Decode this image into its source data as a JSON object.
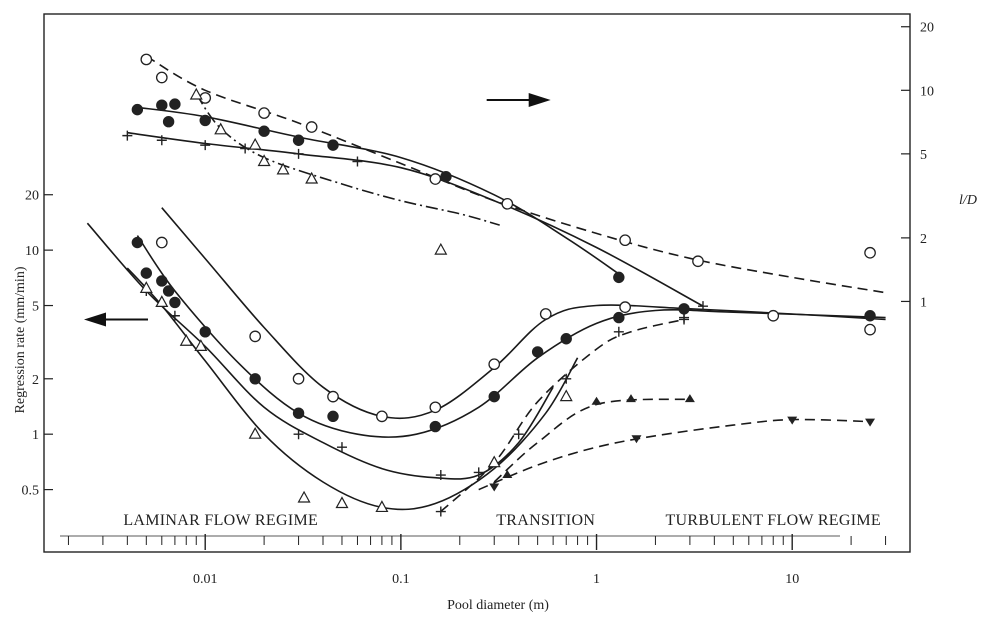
{
  "chart_data": {
    "type": "line",
    "xlabel": "Pool diameter (m)",
    "ylabel_left": "Regression rate (mm/min)",
    "ylabel_right": "l/D",
    "xscale": "log",
    "yscale": "log",
    "xlim": [
      0.0015,
      40
    ],
    "xticks": [
      {
        "value": 0.01,
        "label": "0.01"
      },
      {
        "value": 0.1,
        "label": "0.1"
      },
      {
        "value": 1,
        "label": "1"
      },
      {
        "value": 10,
        "label": "10"
      }
    ],
    "left_axis": {
      "ylim": [
        0.25,
        35
      ],
      "ticks": [
        {
          "value": 0.5,
          "label": "0.5"
        },
        {
          "value": 1,
          "label": "1"
        },
        {
          "value": 2,
          "label": "2"
        },
        {
          "value": 5,
          "label": "5"
        },
        {
          "value": 10,
          "label": "10"
        },
        {
          "value": 20,
          "label": "20"
        }
      ]
    },
    "right_axis": {
      "ylim": [
        0.5,
        22
      ],
      "ticks": [
        {
          "value": 1,
          "label": "1"
        },
        {
          "value": 2,
          "label": "2"
        },
        {
          "value": 5,
          "label": "5"
        },
        {
          "value": 10,
          "label": "10"
        },
        {
          "value": 20,
          "label": "20"
        }
      ]
    },
    "regime_labels": [
      {
        "text": "LAMINAR FLOW REGIME",
        "x": 0.012
      },
      {
        "text": "TRANSITION",
        "x": 0.55
      },
      {
        "text": "TURBULENT FLOW REGIME",
        "x": 8
      }
    ],
    "arrows": [
      {
        "direction": "right",
        "axis": "right",
        "x": 0.4,
        "y": 9
      },
      {
        "direction": "left",
        "axis": "left",
        "x": 0.0035,
        "y": 4.2
      }
    ],
    "series": [
      {
        "axis": "left",
        "marker": "open-circle",
        "style": "solid",
        "points": [
          [
            0.006,
            11
          ],
          [
            0.018,
            3.4
          ],
          [
            0.03,
            2.0
          ],
          [
            0.045,
            1.6
          ],
          [
            0.08,
            1.25
          ],
          [
            0.15,
            1.4
          ],
          [
            0.3,
            2.4
          ],
          [
            0.55,
            4.5
          ],
          [
            1.4,
            4.9
          ],
          [
            8,
            4.4
          ],
          [
            25,
            3.7
          ]
        ],
        "curve": [
          [
            0.006,
            17
          ],
          [
            0.01,
            9
          ],
          [
            0.02,
            3.8
          ],
          [
            0.04,
            1.8
          ],
          [
            0.08,
            1.25
          ],
          [
            0.15,
            1.35
          ],
          [
            0.3,
            2.3
          ],
          [
            0.55,
            4.2
          ],
          [
            1,
            5
          ],
          [
            3,
            4.8
          ],
          [
            10,
            4.5
          ],
          [
            30,
            4.2
          ]
        ]
      },
      {
        "axis": "left",
        "marker": "filled-circle",
        "style": "solid",
        "points": [
          [
            0.0045,
            11
          ],
          [
            0.005,
            7.5
          ],
          [
            0.006,
            6.8
          ],
          [
            0.0065,
            6
          ],
          [
            0.007,
            5.2
          ],
          [
            0.01,
            3.6
          ],
          [
            0.018,
            2.0
          ],
          [
            0.03,
            1.3
          ],
          [
            0.045,
            1.25
          ],
          [
            0.15,
            1.1
          ],
          [
            0.3,
            1.6
          ],
          [
            0.5,
            2.8
          ],
          [
            0.7,
            3.3
          ],
          [
            1.3,
            4.3
          ],
          [
            2.8,
            4.8
          ],
          [
            25,
            4.4
          ]
        ],
        "curve": [
          [
            0.0045,
            12
          ],
          [
            0.007,
            6
          ],
          [
            0.015,
            2.4
          ],
          [
            0.03,
            1.3
          ],
          [
            0.06,
            1.0
          ],
          [
            0.12,
            1.0
          ],
          [
            0.25,
            1.4
          ],
          [
            0.5,
            2.6
          ],
          [
            1,
            4
          ],
          [
            2,
            4.7
          ],
          [
            5,
            4.6
          ],
          [
            30,
            4.3
          ]
        ]
      },
      {
        "axis": "left",
        "marker": "plus",
        "style": "solid",
        "points": [
          [
            0.005,
            6
          ],
          [
            0.007,
            4.4
          ],
          [
            0.03,
            1.0
          ],
          [
            0.05,
            0.85
          ],
          [
            0.16,
            0.6
          ],
          [
            0.25,
            0.62
          ],
          [
            2.8,
            4.3
          ]
        ],
        "curve": [
          [
            0.0025,
            14
          ],
          [
            0.005,
            6
          ],
          [
            0.01,
            3
          ],
          [
            0.02,
            1.4
          ],
          [
            0.04,
            0.9
          ],
          [
            0.08,
            0.65
          ],
          [
            0.15,
            0.58
          ],
          [
            0.25,
            0.6
          ],
          [
            0.4,
            0.9
          ],
          [
            0.6,
            1.8
          ]
        ]
      },
      {
        "axis": "left",
        "marker": "open-triangle",
        "style": "solid",
        "points": [
          [
            0.005,
            6.2
          ],
          [
            0.006,
            5.2
          ],
          [
            0.008,
            3.2
          ],
          [
            0.0095,
            3
          ],
          [
            0.018,
            1.0
          ],
          [
            0.032,
            0.45
          ],
          [
            0.05,
            0.42
          ],
          [
            0.08,
            0.4
          ],
          [
            0.3,
            0.7
          ],
          [
            0.7,
            1.6
          ]
        ],
        "curve": [
          [
            0.004,
            8
          ],
          [
            0.006,
            5
          ],
          [
            0.01,
            2.5
          ],
          [
            0.02,
            1.0
          ],
          [
            0.04,
            0.55
          ],
          [
            0.08,
            0.4
          ],
          [
            0.15,
            0.42
          ],
          [
            0.3,
            0.65
          ],
          [
            0.55,
            1.3
          ],
          [
            0.8,
            2.6
          ]
        ]
      },
      {
        "axis": "left",
        "marker": "plus",
        "style": "dashed",
        "points": [
          [
            0.16,
            0.38
          ],
          [
            0.4,
            1.0
          ],
          [
            0.7,
            2.0
          ],
          [
            1.3,
            3.6
          ],
          [
            2.8,
            4.2
          ]
        ],
        "curve": [
          [
            0.16,
            0.38
          ],
          [
            0.3,
            0.7
          ],
          [
            0.5,
            1.5
          ],
          [
            1,
            2.9
          ],
          [
            1.5,
            3.6
          ],
          [
            2.8,
            4.2
          ]
        ]
      },
      {
        "axis": "left",
        "marker": "filled-triangle",
        "style": "dashed",
        "points": [
          [
            0.35,
            0.6
          ],
          [
            1.0,
            1.5
          ],
          [
            1.5,
            1.55
          ],
          [
            3,
            1.55
          ]
        ],
        "curve": [
          [
            0.3,
            0.55
          ],
          [
            0.5,
            0.9
          ],
          [
            1,
            1.45
          ],
          [
            3,
            1.55
          ]
        ]
      },
      {
        "axis": "left",
        "marker": "filled-triangle-down",
        "style": "dashed",
        "points": [
          [
            0.3,
            0.52
          ],
          [
            1.6,
            0.95
          ],
          [
            10,
            1.2
          ],
          [
            25,
            1.17
          ]
        ],
        "curve": [
          [
            0.25,
            0.5
          ],
          [
            0.5,
            0.68
          ],
          [
            1,
            0.85
          ],
          [
            2,
            0.98
          ],
          [
            5,
            1.12
          ],
          [
            10,
            1.2
          ],
          [
            25,
            1.17
          ]
        ]
      },
      {
        "axis": "right",
        "marker": "open-circle",
        "style": "dashed",
        "points": [
          [
            0.005,
            14
          ],
          [
            0.006,
            11.5
          ],
          [
            0.01,
            9.2
          ],
          [
            0.02,
            7.8
          ],
          [
            0.035,
            6.7
          ],
          [
            0.15,
            3.8
          ],
          [
            0.35,
            2.9
          ],
          [
            1.4,
            1.95
          ],
          [
            3.3,
            1.55
          ],
          [
            25,
            1.7
          ]
        ],
        "curve": [
          [
            0.005,
            14.5
          ],
          [
            0.01,
            10
          ],
          [
            0.03,
            7
          ],
          [
            0.1,
            4.5
          ],
          [
            0.3,
            3.0
          ],
          [
            1,
            2.1
          ],
          [
            3,
            1.6
          ],
          [
            10,
            1.3
          ],
          [
            30,
            1.1
          ]
        ]
      },
      {
        "axis": "right",
        "marker": "filled-circle",
        "style": "solid",
        "points": [
          [
            0.0045,
            8.1
          ],
          [
            0.006,
            8.5
          ],
          [
            0.0065,
            7.1
          ],
          [
            0.007,
            8.6
          ],
          [
            0.01,
            7.2
          ],
          [
            0.02,
            6.4
          ],
          [
            0.03,
            5.8
          ],
          [
            0.045,
            5.5
          ],
          [
            0.17,
            3.9
          ],
          [
            1.3,
            1.3
          ]
        ],
        "curve": [
          [
            0.0045,
            8.3
          ],
          [
            0.01,
            7.5
          ],
          [
            0.03,
            6.0
          ],
          [
            0.1,
            4.8
          ],
          [
            0.3,
            3.2
          ],
          [
            0.7,
            2.0
          ],
          [
            1.3,
            1.35
          ]
        ]
      },
      {
        "axis": "right",
        "marker": "plus",
        "style": "solid",
        "points": [
          [
            0.004,
            6.1
          ],
          [
            0.006,
            5.8
          ],
          [
            0.01,
            5.5
          ],
          [
            0.016,
            5.3
          ],
          [
            0.03,
            5.0
          ],
          [
            0.06,
            4.6
          ],
          [
            3.5,
            0.95
          ]
        ],
        "curve": [
          [
            0.004,
            6.3
          ],
          [
            0.01,
            5.6
          ],
          [
            0.03,
            5.0
          ],
          [
            0.1,
            4.3
          ],
          [
            0.3,
            3.0
          ],
          [
            1,
            1.8
          ],
          [
            3.5,
            0.95
          ]
        ]
      },
      {
        "axis": "right",
        "marker": "open-triangle",
        "style": "dash-dot",
        "points": [
          [
            0.009,
            9.5
          ],
          [
            0.012,
            6.5
          ],
          [
            0.018,
            5.5
          ],
          [
            0.02,
            4.6
          ],
          [
            0.025,
            4.2
          ],
          [
            0.035,
            3.8
          ],
          [
            0.16,
            1.75
          ]
        ],
        "curve": [
          [
            0.009,
            9.6
          ],
          [
            0.012,
            6.6
          ],
          [
            0.02,
            4.8
          ],
          [
            0.05,
            3.6
          ],
          [
            0.1,
            3.0
          ],
          [
            0.2,
            2.6
          ],
          [
            0.32,
            2.3
          ]
        ]
      }
    ]
  }
}
